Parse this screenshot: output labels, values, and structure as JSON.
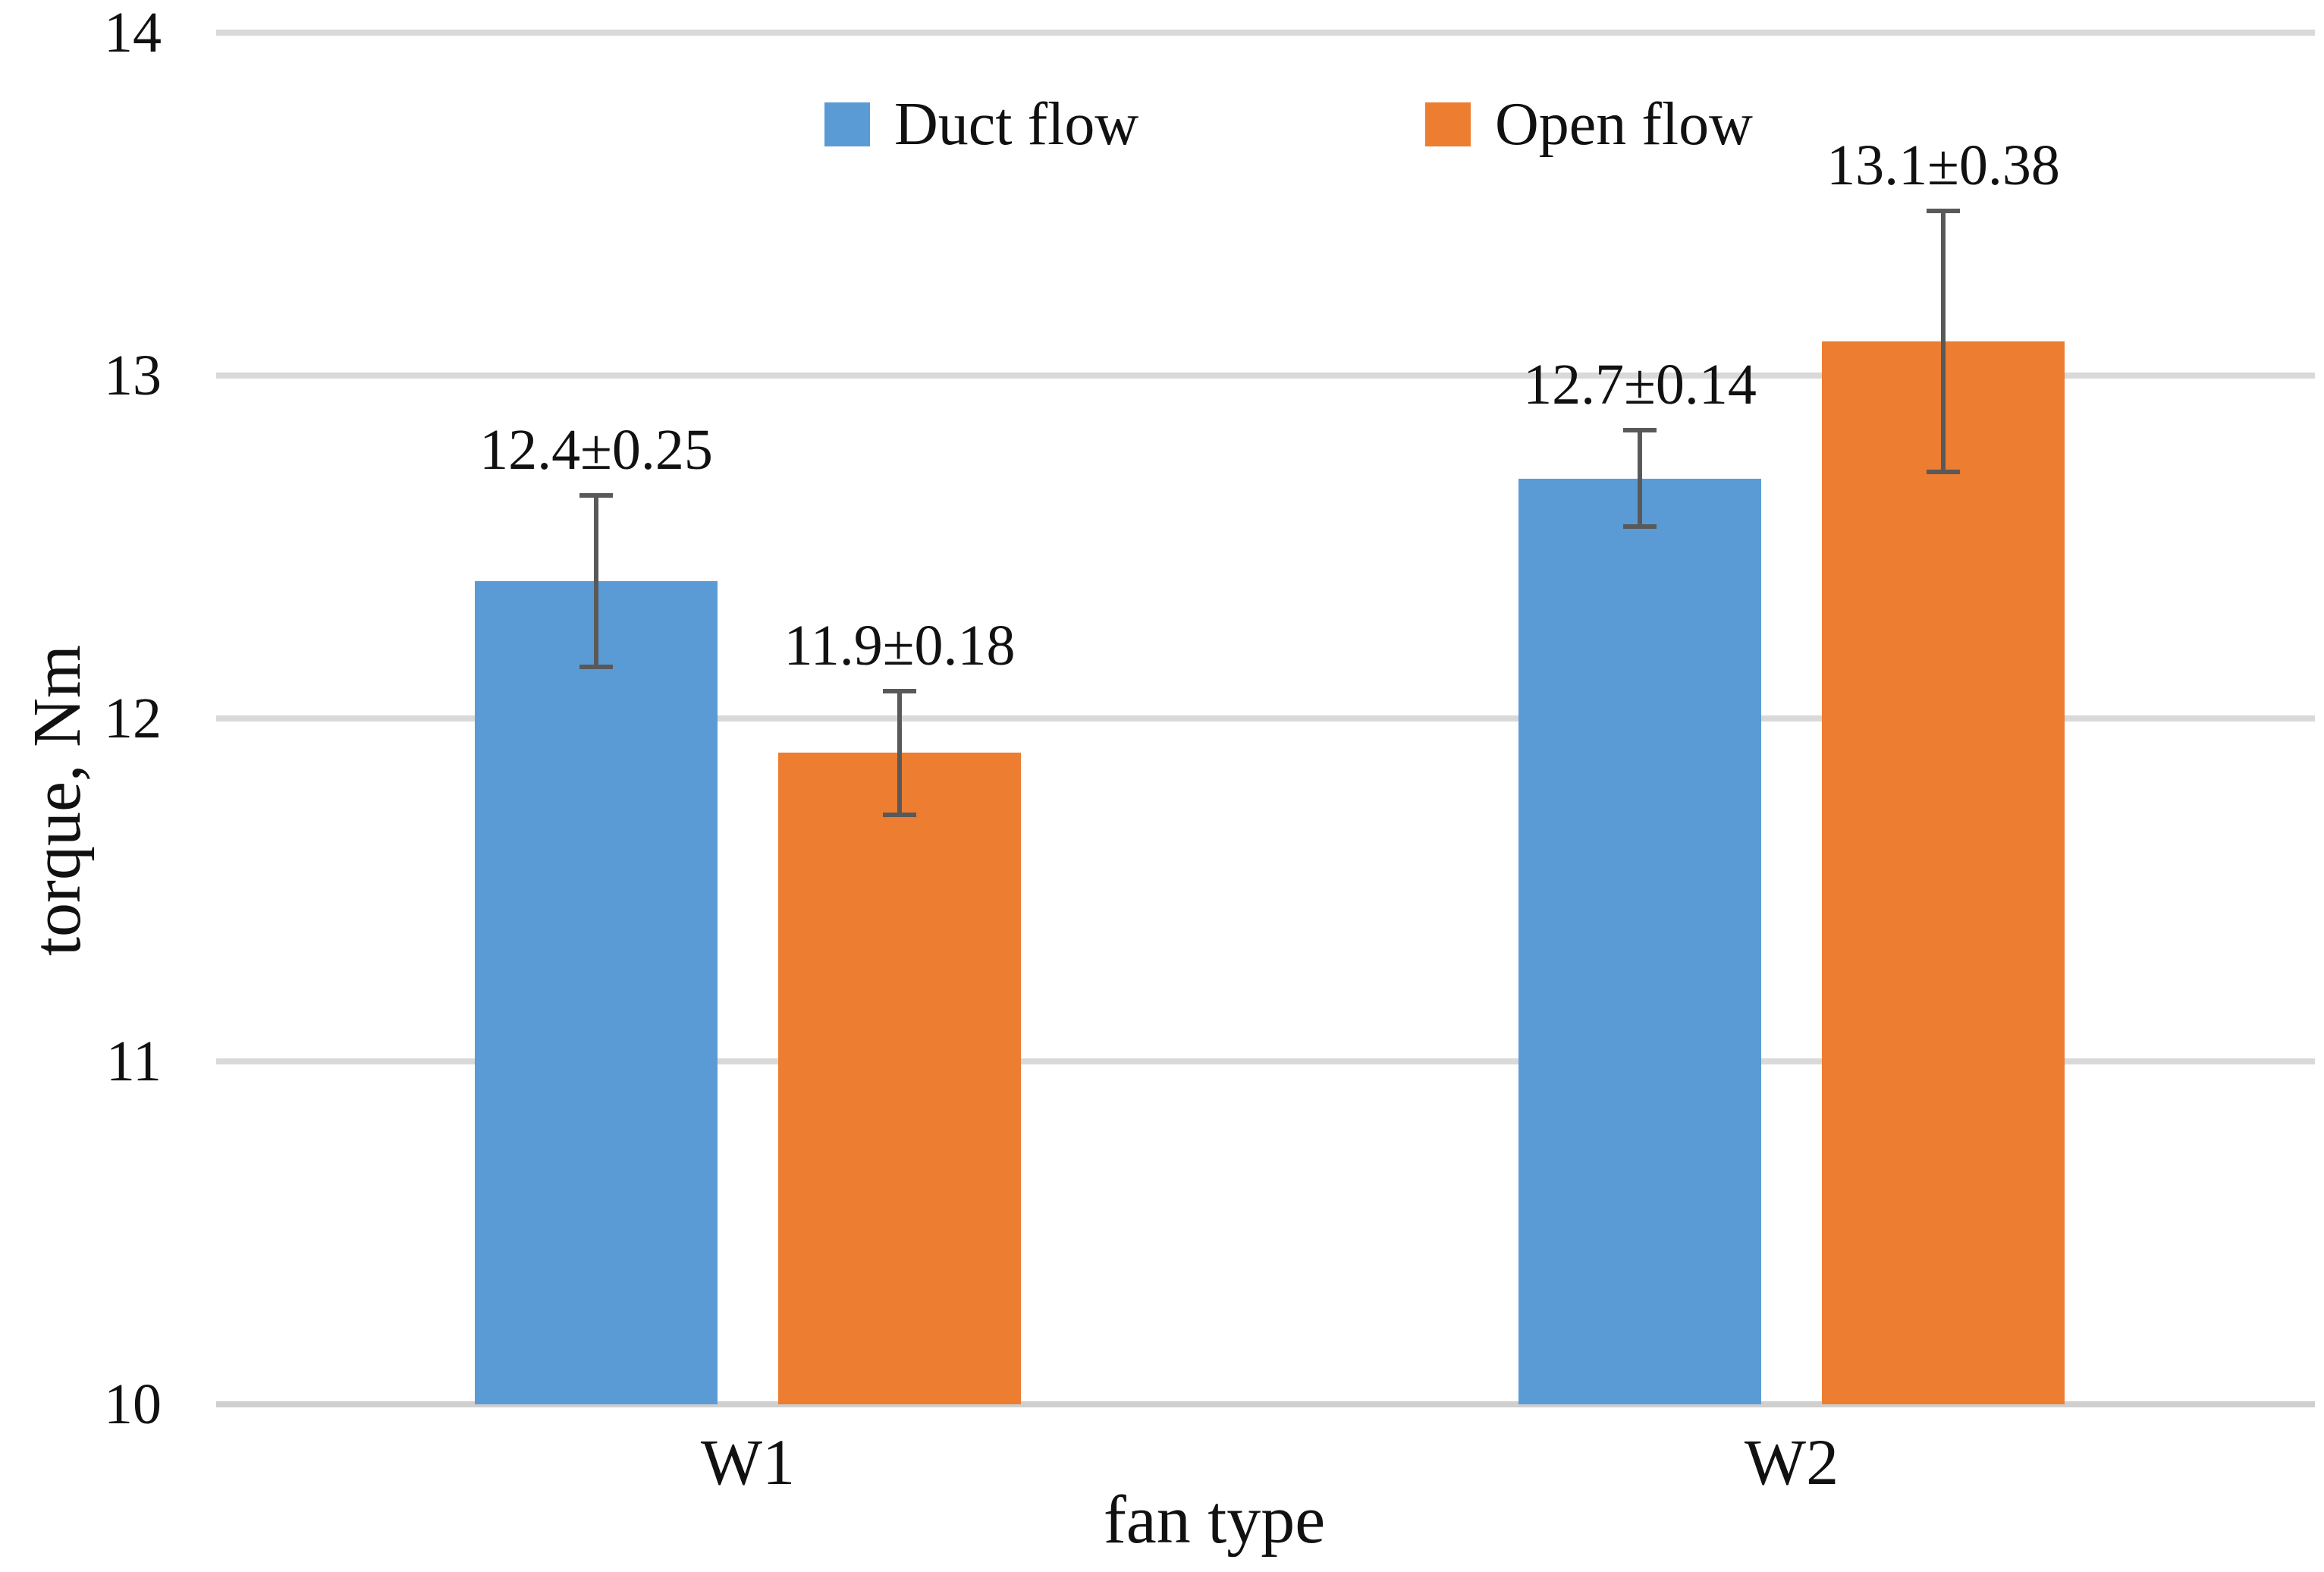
{
  "chart_data": {
    "type": "bar",
    "title": "",
    "categories": [
      "W1",
      "W2"
    ],
    "series": [
      {
        "name": "Duct flow",
        "color": "#5B9BD5",
        "values": [
          12.4,
          12.7
        ],
        "errors": [
          0.25,
          0.14
        ],
        "value_labels": [
          "12.4±0.25",
          "12.7±0.14"
        ]
      },
      {
        "name": "Open flow",
        "color": "#ED7D31",
        "values": [
          11.9,
          13.1
        ],
        "errors": [
          0.18,
          0.38
        ],
        "value_labels": [
          "11.9±0.18",
          "13.1±0.38"
        ]
      }
    ],
    "xlabel": "fan type",
    "ylabel": "torque, Nm",
    "ylim": [
      10,
      14
    ],
    "yticks": [
      "10",
      "11",
      "12",
      "13",
      "14"
    ],
    "grid": true,
    "legend_position": "top",
    "colors": {
      "error_bar": "#595959",
      "gridline": "#D9D9D9",
      "baseline": "#CFCFCF",
      "text": "#111111",
      "background": "#FFFFFF"
    }
  }
}
